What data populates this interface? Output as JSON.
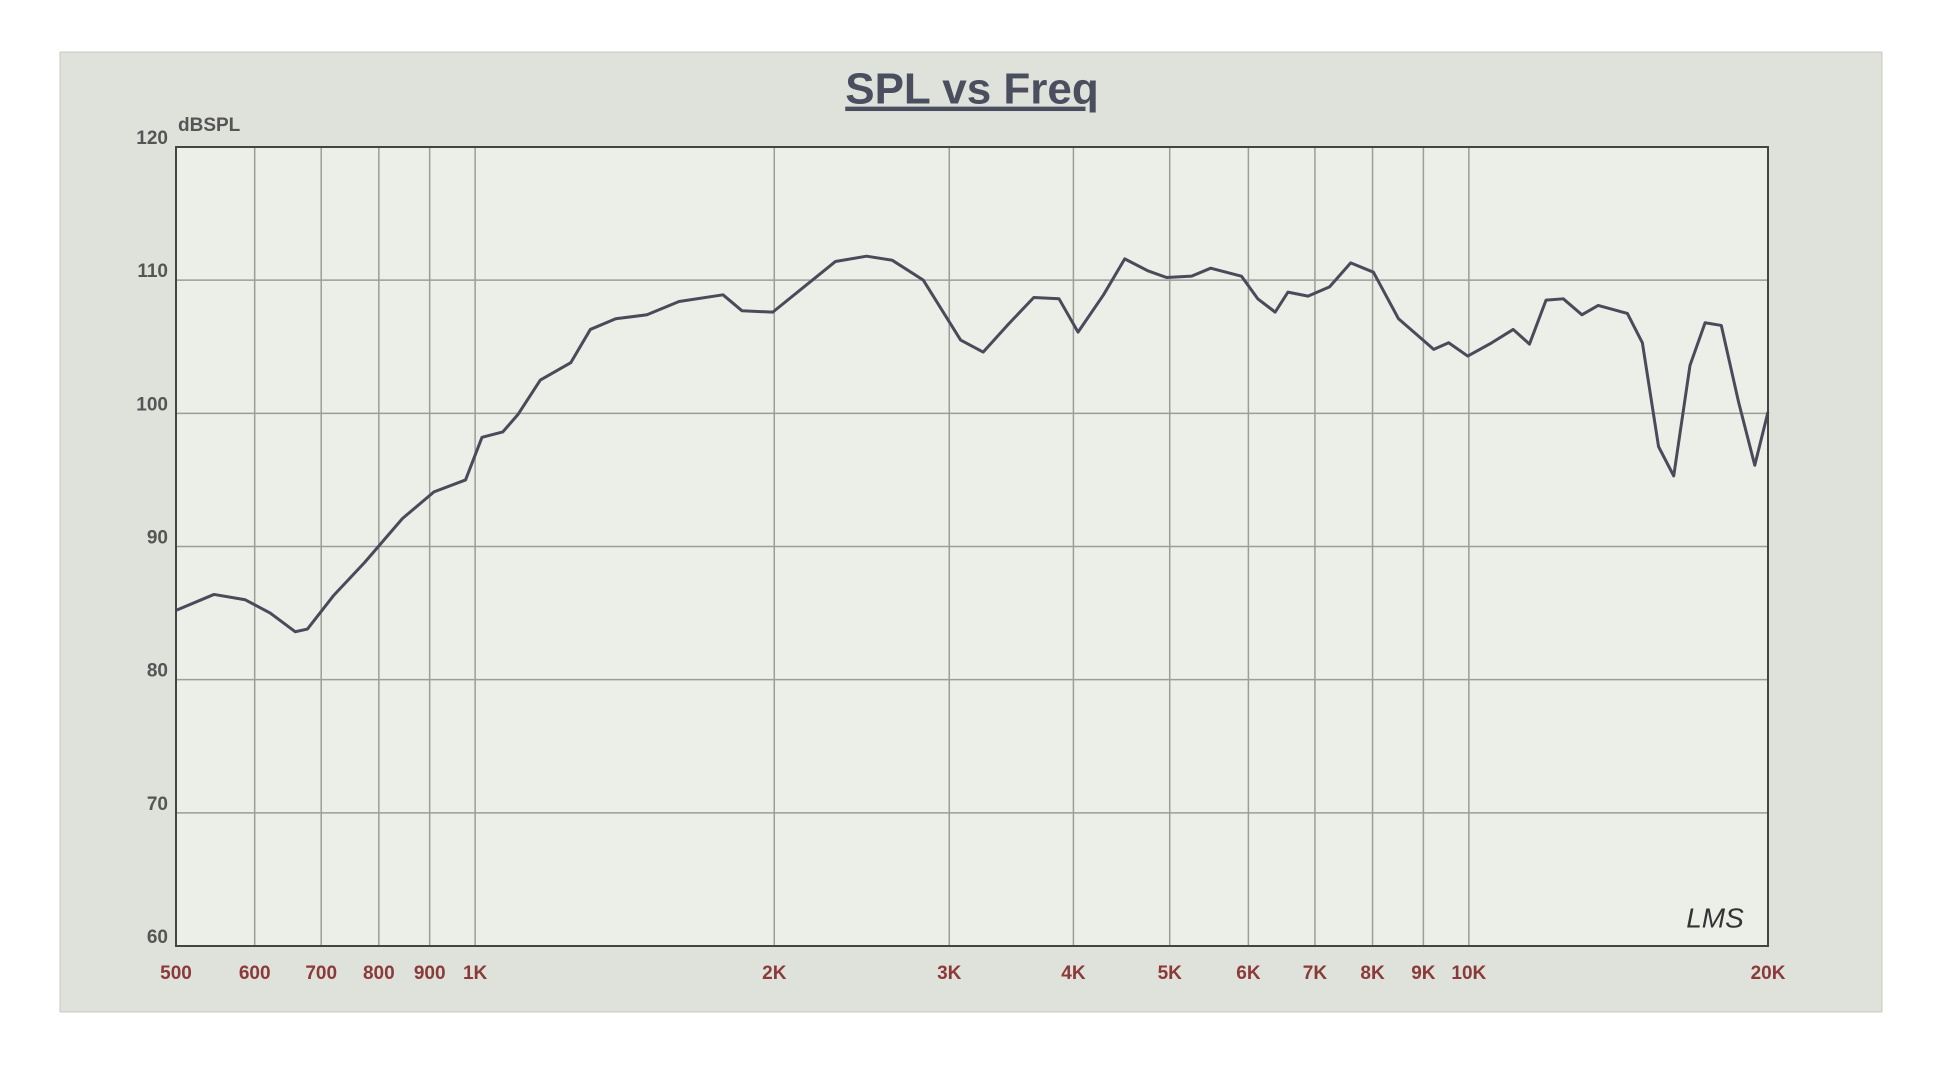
{
  "chart_data": {
    "type": "line",
    "title": "SPL vs Freq",
    "y_label": "dBSPL",
    "annotation": "LMS",
    "log_x": true,
    "grid": true,
    "xlim": [
      500,
      20000
    ],
    "ylim": [
      60,
      120
    ],
    "xticks": [
      500,
      600,
      700,
      800,
      900,
      {
        "value": 1000,
        "label": "1K"
      },
      {
        "value": 2000,
        "label": "2K"
      },
      {
        "value": 3000,
        "label": "3K"
      },
      {
        "value": 4000,
        "label": "4K"
      },
      {
        "value": 5000,
        "label": "5K"
      },
      {
        "value": 6000,
        "label": "6K"
      },
      {
        "value": 7000,
        "label": "7K"
      },
      {
        "value": 8000,
        "label": "8K"
      },
      {
        "value": 9000,
        "label": "9K"
      },
      {
        "value": 10000,
        "label": "10K"
      },
      {
        "value": 20000,
        "label": "20K"
      }
    ],
    "yticks": [
      60,
      70,
      80,
      90,
      100,
      110,
      120
    ],
    "x": [
      500,
      546,
      587,
      622,
      659,
      678,
      720,
      774,
      845,
      909,
      978,
      1016,
      1066,
      1104,
      1163,
      1248,
      1306,
      1385,
      1489,
      1604,
      1776,
      1856,
      1993,
      2143,
      2304,
      2477,
      2628,
      2825,
      3080,
      3245,
      3441,
      3649,
      3869,
      4043,
      4289,
      4505,
      4753,
      4964,
      5261,
      5498,
      5904,
      6131,
      6384,
      6575,
      6889,
      7241,
      7605,
      8016,
      8496,
      9218,
      9542,
      9974,
      10545,
      11082,
      11508,
      11958,
      12446,
      12994,
      13494,
      14438,
      14949,
      15520,
      16075,
      16693,
      17287,
      17948,
      18688,
      19396,
      20000
    ],
    "series": [
      {
        "color": "#4a4a5a",
        "values": [
          85.2,
          86.4,
          86.0,
          85.0,
          83.6,
          83.8,
          86.3,
          88.8,
          92.1,
          94.1,
          95.0,
          98.2,
          98.6,
          99.9,
          102.5,
          103.8,
          106.3,
          107.1,
          107.4,
          108.4,
          108.9,
          107.7,
          107.6,
          109.5,
          111.4,
          111.8,
          111.5,
          110.0,
          105.5,
          104.6,
          106.7,
          108.7,
          108.6,
          106.1,
          108.9,
          111.6,
          110.7,
          110.2,
          110.3,
          110.9,
          110.3,
          108.6,
          107.6,
          109.1,
          108.8,
          109.5,
          111.3,
          110.6,
          107.1,
          104.8,
          105.3,
          104.3,
          105.3,
          106.3,
          105.2,
          108.5,
          108.6,
          107.4,
          108.1,
          107.5,
          105.3,
          97.5,
          95.3,
          103.6,
          106.8,
          106.6,
          100.8,
          96.1,
          100.1
        ]
      }
    ]
  }
}
